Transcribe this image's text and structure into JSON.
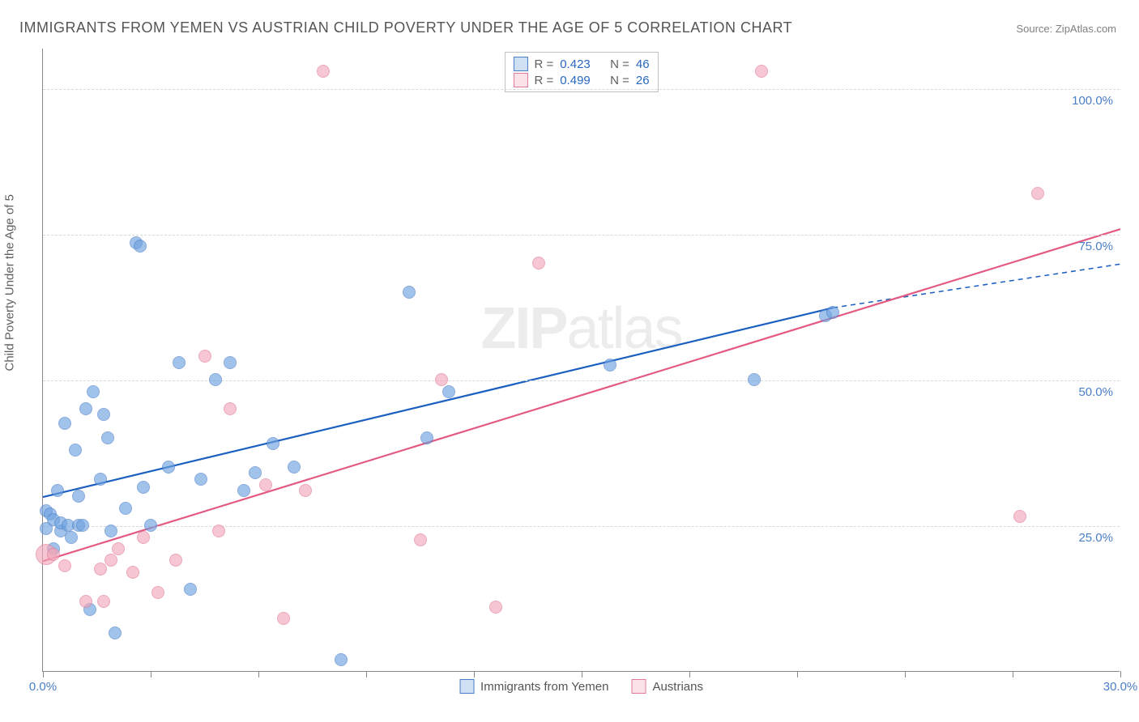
{
  "title": "IMMIGRANTS FROM YEMEN VS AUSTRIAN CHILD POVERTY UNDER THE AGE OF 5 CORRELATION CHART",
  "source": "Source: ZipAtlas.com",
  "ylabel": "Child Poverty Under the Age of 5",
  "watermark_a": "ZIP",
  "watermark_b": "atlas",
  "chart": {
    "type": "scatter",
    "xlim": [
      0,
      30
    ],
    "ylim": [
      0,
      107
    ],
    "x_ticks": [
      0,
      3,
      6,
      9,
      12,
      15,
      18,
      21,
      24,
      27,
      30
    ],
    "x_tick_labels": {
      "0": "0.0%",
      "30": "30.0%"
    },
    "y_ticks": [
      25,
      50,
      75,
      100
    ],
    "y_tick_labels": {
      "25": "25.0%",
      "50": "50.0%",
      "75": "75.0%",
      "100": "100.0%"
    },
    "background_color": "#ffffff",
    "grid_color": "#d8d8d8",
    "axis_color": "#888888",
    "marker_radius": 8,
    "marker_opacity_fill": 0.35,
    "marker_opacity_stroke": 0.85,
    "marker_size_large": 13,
    "line_width": 2.2,
    "title_fontsize": 18,
    "label_fontsize": 15,
    "series": [
      {
        "name": "Immigrants from Yemen",
        "color": "#6fa3e0",
        "stroke": "#4a7ec7",
        "trend_color": "#1b5fc1",
        "r": "0.423",
        "n": "46",
        "trend_solid": {
          "x1": 0,
          "y1": 30,
          "x2": 22,
          "y2": 62.5
        },
        "trend_dash": {
          "x1": 22,
          "y1": 62.5,
          "x2": 30,
          "y2": 70
        },
        "points": [
          {
            "x": 0.1,
            "y": 27.5
          },
          {
            "x": 0.1,
            "y": 24.5
          },
          {
            "x": 0.2,
            "y": 27
          },
          {
            "x": 0.3,
            "y": 21
          },
          {
            "x": 0.3,
            "y": 26
          },
          {
            "x": 0.4,
            "y": 31
          },
          {
            "x": 0.5,
            "y": 24
          },
          {
            "x": 0.5,
            "y": 25.5
          },
          {
            "x": 0.6,
            "y": 42.5
          },
          {
            "x": 0.7,
            "y": 25
          },
          {
            "x": 0.8,
            "y": 23
          },
          {
            "x": 0.9,
            "y": 38
          },
          {
            "x": 1.0,
            "y": 25
          },
          {
            "x": 1.0,
            "y": 30
          },
          {
            "x": 1.1,
            "y": 25
          },
          {
            "x": 1.2,
            "y": 45
          },
          {
            "x": 1.3,
            "y": 10.5
          },
          {
            "x": 1.4,
            "y": 48
          },
          {
            "x": 1.6,
            "y": 33
          },
          {
            "x": 1.7,
            "y": 44
          },
          {
            "x": 1.8,
            "y": 40
          },
          {
            "x": 1.9,
            "y": 24
          },
          {
            "x": 2.0,
            "y": 6.5
          },
          {
            "x": 2.3,
            "y": 28
          },
          {
            "x": 2.6,
            "y": 73.5
          },
          {
            "x": 2.7,
            "y": 73
          },
          {
            "x": 2.8,
            "y": 31.5
          },
          {
            "x": 3.0,
            "y": 25
          },
          {
            "x": 3.5,
            "y": 35
          },
          {
            "x": 3.8,
            "y": 53
          },
          {
            "x": 4.1,
            "y": 14
          },
          {
            "x": 4.4,
            "y": 33
          },
          {
            "x": 4.8,
            "y": 50
          },
          {
            "x": 5.2,
            "y": 53
          },
          {
            "x": 5.6,
            "y": 31
          },
          {
            "x": 5.9,
            "y": 34
          },
          {
            "x": 6.4,
            "y": 39
          },
          {
            "x": 7.0,
            "y": 35
          },
          {
            "x": 8.3,
            "y": 2
          },
          {
            "x": 10.2,
            "y": 65
          },
          {
            "x": 10.7,
            "y": 40
          },
          {
            "x": 11.3,
            "y": 48
          },
          {
            "x": 15.8,
            "y": 52.5
          },
          {
            "x": 19.8,
            "y": 50
          },
          {
            "x": 21.8,
            "y": 61
          },
          {
            "x": 22.0,
            "y": 61.5
          }
        ]
      },
      {
        "name": "Austrians",
        "color": "#f2a8bb",
        "stroke": "#e17a97",
        "trend_color": "#e35a82",
        "r": "0.499",
        "n": "26",
        "trend_solid": {
          "x1": 0,
          "y1": 19,
          "x2": 30,
          "y2": 76
        },
        "trend_dash": null,
        "points": [
          {
            "x": 0.1,
            "y": 20,
            "r": 13
          },
          {
            "x": 0.3,
            "y": 20
          },
          {
            "x": 0.6,
            "y": 18
          },
          {
            "x": 1.2,
            "y": 12
          },
          {
            "x": 1.6,
            "y": 17.5
          },
          {
            "x": 1.7,
            "y": 12
          },
          {
            "x": 1.9,
            "y": 19
          },
          {
            "x": 2.1,
            "y": 21
          },
          {
            "x": 2.5,
            "y": 17
          },
          {
            "x": 2.8,
            "y": 23
          },
          {
            "x": 3.2,
            "y": 13.5
          },
          {
            "x": 3.7,
            "y": 19
          },
          {
            "x": 4.5,
            "y": 54
          },
          {
            "x": 4.9,
            "y": 24
          },
          {
            "x": 5.2,
            "y": 45
          },
          {
            "x": 6.2,
            "y": 32
          },
          {
            "x": 6.7,
            "y": 9
          },
          {
            "x": 7.3,
            "y": 31
          },
          {
            "x": 7.8,
            "y": 103
          },
          {
            "x": 10.5,
            "y": 22.5
          },
          {
            "x": 11.1,
            "y": 50
          },
          {
            "x": 12.6,
            "y": 11
          },
          {
            "x": 13.8,
            "y": 70
          },
          {
            "x": 20.0,
            "y": 103
          },
          {
            "x": 27.2,
            "y": 26.5
          },
          {
            "x": 27.7,
            "y": 82
          }
        ]
      }
    ]
  },
  "legend_top_labels": {
    "r": "R =",
    "n": "N ="
  },
  "legend_bottom": [
    "Immigrants from Yemen",
    "Austrians"
  ]
}
